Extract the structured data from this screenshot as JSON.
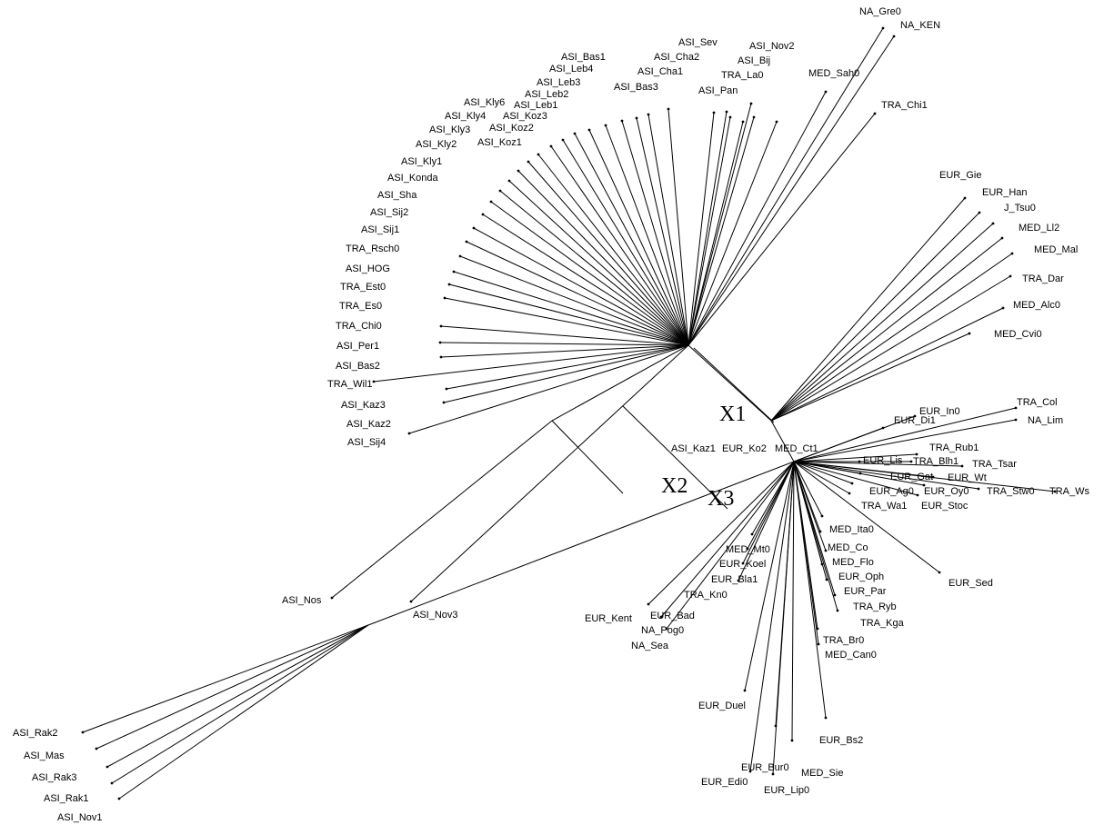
{
  "tree": {
    "leaves": [
      "NA_Gre0",
      "NA_KEN",
      "MED_Sah0",
      "TRA_Chi1",
      "ASI_Sev",
      "ASI_Nov2",
      "ASI_Cha2",
      "ASI_Bij",
      "ASI_Cha1",
      "TRA_La0",
      "ASI_Bas3",
      "ASI_Pan",
      "ASI_Bas1",
      "ASI_Leb4",
      "ASI_Leb3",
      "ASI_Leb2",
      "ASI_Leb1",
      "ASI_Kly6",
      "ASI_Kly4",
      "ASI_Koz3",
      "ASI_Kly3",
      "ASI_Koz2",
      "ASI_Kly2",
      "ASI_Koz1",
      "ASI_Kly1",
      "ASI_Konda",
      "ASI_Sha",
      "ASI_Sij2",
      "ASI_Sij1",
      "TRA_Rsch0",
      "ASI_HOG",
      "TRA_Est0",
      "TRA_Es0",
      "TRA_Chi0",
      "ASI_Per1",
      "ASI_Bas2",
      "TRA_Wil1",
      "ASI_Kaz3",
      "ASI_Kaz2",
      "ASI_Sij4",
      "EUR_Gie",
      "EUR_Han",
      "J_Tsu0",
      "MED_Ll2",
      "MED_Mal",
      "TRA_Dar",
      "MED_Alc0",
      "MED_Cvi0",
      "TRA_Col",
      "EUR_In0",
      "EUR_Di1",
      "NA_Lim",
      "TRA_Rub1",
      "EUR_Lis",
      "TRA_Blh1",
      "TRA_Tsar",
      "EUR_Gat",
      "EUR_Wt",
      "EUR_Ag0",
      "EUR_Oy0",
      "TRA_Stw0",
      "TRA_Ws",
      "TRA_Wa1",
      "EUR_Stoc",
      "MED_Ita0",
      "MED_Co",
      "MED_Flo",
      "EUR_Oph",
      "EUR_Par",
      "TRA_Ryb",
      "TRA_Kga",
      "TRA_Br0",
      "MED_Can0",
      "MED_Mt0",
      "EUR_Koel",
      "EUR_Bla1",
      "TRA_Kn0",
      "EUR_Sed",
      "ASI_Kaz1",
      "EUR_Ko2",
      "MED_Ct1",
      "EUR_Kent",
      "EUR_Bad",
      "NA_Pog0",
      "NA_Sea",
      "ASI_Nos",
      "ASI_Nov3",
      "EUR_Duel",
      "EUR_Bs2",
      "EUR_Bur0",
      "MED_Sie",
      "EUR_Edi0",
      "EUR_Lip0",
      "ASI_Rak2",
      "ASI_Mas",
      "ASI_Rak3",
      "ASI_Rak1",
      "ASI_Nov1"
    ],
    "node_labels": [
      "X1",
      "X2",
      "X3"
    ]
  }
}
